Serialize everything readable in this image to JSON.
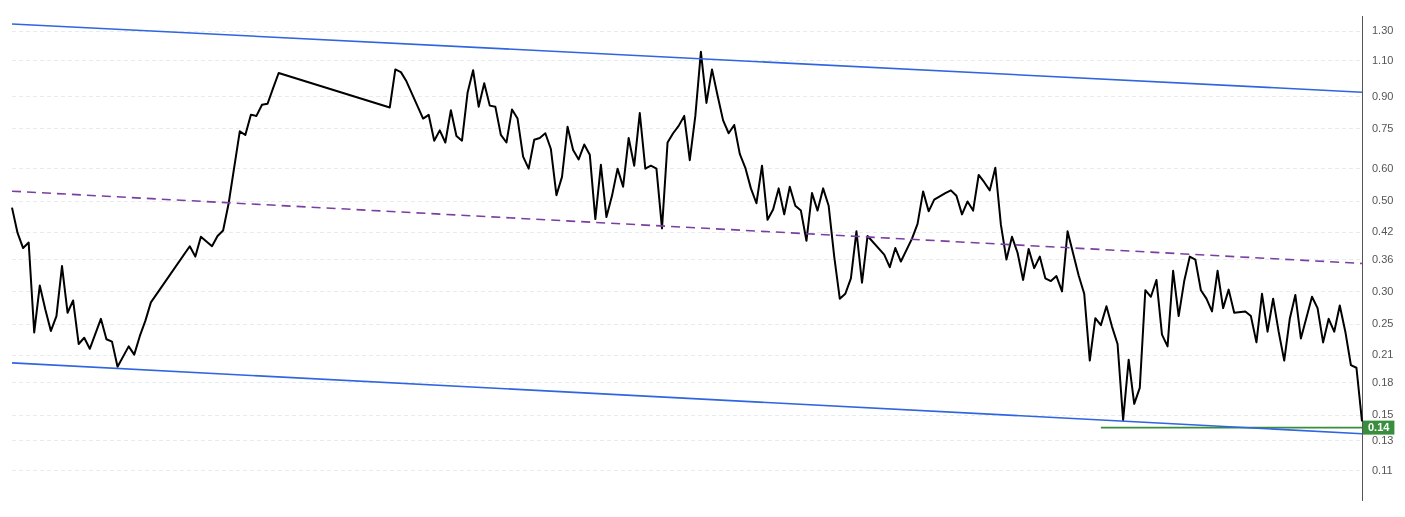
{
  "chart_data": {
    "type": "line",
    "log": "y",
    "grid": "y",
    "tick_labels": "y",
    "categories": [
      null,
      null,
      null,
      null,
      null,
      null,
      null,
      null,
      null,
      null,
      null,
      null,
      null,
      null,
      null,
      null,
      null,
      null,
      null,
      null,
      null,
      null,
      null,
      null,
      null,
      null,
      null,
      null,
      null,
      null,
      null,
      null,
      null,
      null,
      null,
      null,
      null,
      null,
      null,
      null,
      null,
      null,
      null,
      null,
      null,
      null,
      null,
      null,
      null,
      null,
      null,
      null,
      null,
      null,
      null,
      null,
      null,
      null,
      null,
      null,
      null,
      null,
      null,
      null,
      null,
      null,
      null,
      null,
      null,
      null,
      null,
      null,
      null,
      null,
      null,
      null,
      null,
      null,
      null,
      null,
      null,
      null,
      null,
      null,
      null,
      null,
      null,
      null,
      null,
      null,
      null,
      null,
      null,
      null,
      null,
      null,
      null,
      null,
      null,
      null,
      null,
      null,
      null,
      null,
      null,
      null,
      null,
      null,
      null,
      null,
      null,
      null,
      null,
      null,
      null,
      null,
      null,
      null,
      null,
      null,
      null,
      null,
      null,
      null,
      null,
      null,
      null,
      null,
      null,
      null,
      null,
      null,
      null,
      null,
      null,
      null,
      null,
      null,
      null,
      null,
      null,
      null,
      null,
      null,
      null,
      null,
      null,
      null,
      null,
      null,
      null,
      null,
      null,
      null,
      null,
      null,
      null,
      null,
      null,
      null,
      null,
      null,
      null,
      null,
      null,
      null,
      null,
      null,
      null,
      null,
      null,
      null,
      null,
      null,
      null,
      null,
      null,
      null,
      null,
      null,
      null,
      null,
      null,
      null,
      null,
      null,
      null,
      null,
      null,
      null,
      null,
      null,
      null,
      null,
      null,
      null,
      null,
      null,
      null,
      null,
      null,
      null,
      null,
      null,
      null,
      null,
      null,
      null,
      null,
      null,
      null,
      null,
      null,
      null,
      null,
      null,
      null,
      null,
      null,
      null,
      null,
      null,
      null,
      null,
      null,
      null,
      null,
      null,
      null,
      null,
      null,
      null,
      null,
      null,
      null,
      null,
      null,
      null,
      null,
      null,
      null,
      null,
      null,
      null
    ],
    "ylim": [
      0.093,
      1.41
    ],
    "yticks": [
      {
        "value": 1.3,
        "label": "1.30"
      },
      {
        "value": 1.1,
        "label": "1.10"
      },
      {
        "value": 0.9,
        "label": "0.90"
      },
      0.75,
      {
        "value": 0.6,
        "label": "0.60"
      },
      {
        "value": 0.5,
        "label": "0.50"
      },
      0.42,
      0.36,
      {
        "value": 0.3,
        "label": "0.30"
      },
      0.25,
      0.21,
      0.18,
      0.15,
      0.13,
      0.11
    ],
    "series": [
      {
        "color": "#2f65e0",
        "values": [
          1.353,
          null,
          null,
          null,
          null,
          null,
          null,
          null,
          null,
          null,
          null,
          null,
          null,
          null,
          null,
          null,
          null,
          null,
          null,
          null,
          null,
          null,
          null,
          null,
          null,
          null,
          null,
          null,
          null,
          null,
          null,
          null,
          null,
          null,
          null,
          null,
          null,
          null,
          null,
          null,
          null,
          null,
          null,
          null,
          null,
          null,
          null,
          null,
          null,
          null,
          null,
          null,
          null,
          null,
          null,
          null,
          null,
          null,
          null,
          null,
          null,
          null,
          null,
          null,
          null,
          null,
          null,
          null,
          null,
          null,
          null,
          null,
          null,
          null,
          null,
          null,
          null,
          null,
          null,
          null,
          null,
          null,
          null,
          null,
          null,
          null,
          null,
          null,
          null,
          null,
          null,
          null,
          null,
          null,
          null,
          null,
          null,
          null,
          null,
          null,
          null,
          null,
          null,
          null,
          null,
          null,
          null,
          null,
          null,
          null,
          null,
          null,
          null,
          null,
          null,
          null,
          null,
          null,
          null,
          null,
          null,
          null,
          null,
          null,
          null,
          null,
          null,
          null,
          null,
          null,
          null,
          null,
          null,
          null,
          null,
          null,
          null,
          null,
          null,
          null,
          null,
          null,
          null,
          null,
          null,
          null,
          null,
          null,
          null,
          null,
          null,
          null,
          null,
          null,
          null,
          null,
          null,
          null,
          null,
          null,
          null,
          null,
          null,
          null,
          null,
          null,
          null,
          null,
          null,
          null,
          null,
          null,
          null,
          null,
          null,
          null,
          null,
          null,
          null,
          null,
          null,
          null,
          null,
          null,
          null,
          null,
          null,
          null,
          null,
          null,
          null,
          null,
          null,
          null,
          null,
          null,
          null,
          null,
          null,
          null,
          null,
          null,
          null,
          null,
          null,
          null,
          null,
          null,
          null,
          null,
          null,
          null,
          null,
          null,
          null,
          null,
          null,
          null,
          null,
          null,
          null,
          null,
          null,
          null,
          null,
          null,
          null,
          null,
          null,
          null,
          null,
          null,
          null,
          null,
          null,
          null,
          null,
          null,
          null,
          null,
          null,
          null,
          null,
          0.922
        ]
      },
      {
        "color": "#2f65e0",
        "values": [
          0.2014,
          null,
          null,
          null,
          null,
          null,
          null,
          null,
          null,
          null,
          null,
          null,
          null,
          null,
          null,
          null,
          null,
          null,
          null,
          null,
          null,
          null,
          null,
          null,
          null,
          null,
          null,
          null,
          null,
          null,
          null,
          null,
          null,
          null,
          null,
          null,
          null,
          null,
          null,
          null,
          null,
          null,
          null,
          null,
          null,
          null,
          null,
          null,
          null,
          null,
          null,
          null,
          null,
          null,
          null,
          null,
          null,
          null,
          null,
          null,
          null,
          null,
          null,
          null,
          null,
          null,
          null,
          null,
          null,
          null,
          null,
          null,
          null,
          null,
          null,
          null,
          null,
          null,
          null,
          null,
          null,
          null,
          null,
          null,
          null,
          null,
          null,
          null,
          null,
          null,
          null,
          null,
          null,
          null,
          null,
          null,
          null,
          null,
          null,
          null,
          null,
          null,
          null,
          null,
          null,
          null,
          null,
          null,
          null,
          null,
          null,
          null,
          null,
          null,
          null,
          null,
          null,
          null,
          null,
          null,
          null,
          null,
          null,
          null,
          null,
          null,
          null,
          null,
          null,
          null,
          null,
          null,
          null,
          null,
          null,
          null,
          null,
          null,
          null,
          null,
          null,
          null,
          null,
          null,
          null,
          null,
          null,
          null,
          null,
          null,
          null,
          null,
          null,
          null,
          null,
          null,
          null,
          null,
          null,
          null,
          null,
          null,
          null,
          null,
          null,
          null,
          null,
          null,
          null,
          null,
          null,
          null,
          null,
          null,
          null,
          null,
          null,
          null,
          null,
          null,
          null,
          null,
          null,
          null,
          null,
          null,
          null,
          null,
          null,
          null,
          null,
          null,
          null,
          null,
          null,
          null,
          null,
          null,
          null,
          null,
          null,
          null,
          null,
          null,
          null,
          null,
          null,
          null,
          null,
          null,
          null,
          null,
          null,
          null,
          null,
          null,
          null,
          null,
          null,
          null,
          null,
          null,
          null,
          null,
          null,
          null,
          null,
          null,
          null,
          null,
          null,
          null,
          null,
          null,
          null,
          null,
          null,
          null,
          null,
          null,
          null,
          null,
          null,
          0.1353
        ]
      },
      {
        "color": "#7b3fa0",
        "line_style": "dashed",
        "values": [
          0.5286,
          null,
          null,
          null,
          null,
          null,
          null,
          null,
          null,
          null,
          null,
          null,
          null,
          null,
          null,
          null,
          null,
          null,
          null,
          null,
          null,
          null,
          null,
          null,
          null,
          null,
          null,
          null,
          null,
          null,
          null,
          null,
          null,
          null,
          null,
          null,
          null,
          null,
          null,
          null,
          null,
          null,
          null,
          null,
          null,
          null,
          null,
          null,
          null,
          null,
          null,
          null,
          null,
          null,
          null,
          null,
          null,
          null,
          null,
          null,
          null,
          null,
          null,
          null,
          null,
          null,
          null,
          null,
          null,
          null,
          null,
          null,
          null,
          null,
          null,
          null,
          null,
          null,
          null,
          null,
          null,
          null,
          null,
          null,
          null,
          null,
          null,
          null,
          null,
          null,
          null,
          null,
          null,
          null,
          null,
          null,
          null,
          null,
          null,
          null,
          null,
          null,
          null,
          null,
          null,
          null,
          null,
          null,
          null,
          null,
          null,
          null,
          null,
          null,
          null,
          null,
          null,
          null,
          null,
          null,
          null,
          null,
          null,
          null,
          null,
          null,
          null,
          null,
          null,
          null,
          null,
          null,
          null,
          null,
          null,
          null,
          null,
          null,
          null,
          null,
          null,
          null,
          null,
          null,
          null,
          null,
          null,
          null,
          null,
          null,
          null,
          null,
          null,
          null,
          null,
          null,
          null,
          null,
          null,
          null,
          null,
          null,
          null,
          null,
          null,
          null,
          null,
          null,
          null,
          null,
          null,
          null,
          null,
          null,
          null,
          null,
          null,
          null,
          null,
          null,
          null,
          null,
          null,
          null,
          null,
          null,
          null,
          null,
          null,
          null,
          null,
          null,
          null,
          null,
          null,
          null,
          null,
          null,
          null,
          null,
          null,
          null,
          null,
          null,
          null,
          null,
          null,
          null,
          null,
          null,
          null,
          null,
          null,
          null,
          null,
          null,
          null,
          null,
          null,
          null,
          null,
          null,
          null,
          null,
          null,
          null,
          null,
          null,
          null,
          null,
          null,
          null,
          null,
          null,
          null,
          null,
          null,
          null,
          null,
          null,
          null,
          null,
          null,
          0.3522
        ]
      },
      {
        "color": "#388e3c",
        "value_labels": [
          null,
          null,
          null,
          null,
          null,
          null,
          null,
          null,
          null,
          null,
          null,
          null,
          null,
          null,
          null,
          null,
          null,
          null,
          null,
          null,
          null,
          null,
          null,
          null,
          null,
          null,
          null,
          null,
          null,
          null,
          null,
          null,
          null,
          null,
          null,
          null,
          null,
          null,
          null,
          null,
          null,
          null,
          null,
          null,
          null,
          null,
          null,
          null,
          null,
          null,
          null,
          null,
          null,
          null,
          null,
          null,
          null,
          null,
          null,
          null,
          null,
          null,
          null,
          null,
          null,
          null,
          null,
          null,
          null,
          null,
          null,
          null,
          null,
          null,
          null,
          null,
          null,
          null,
          null,
          null,
          null,
          null,
          null,
          null,
          null,
          null,
          null,
          null,
          null,
          null,
          null,
          null,
          null,
          null,
          null,
          null,
          null,
          null,
          null,
          null,
          null,
          null,
          null,
          null,
          null,
          null,
          null,
          null,
          null,
          null,
          null,
          null,
          null,
          null,
          null,
          null,
          null,
          null,
          null,
          null,
          null,
          null,
          null,
          null,
          null,
          null,
          null,
          null,
          null,
          null,
          null,
          null,
          null,
          null,
          null,
          null,
          null,
          null,
          null,
          null,
          null,
          null,
          null,
          null,
          null,
          null,
          null,
          null,
          null,
          null,
          null,
          null,
          null,
          null,
          null,
          null,
          null,
          null,
          null,
          null,
          null,
          null,
          null,
          null,
          null,
          null,
          null,
          null,
          null,
          null,
          null,
          null,
          null,
          null,
          null,
          null,
          null,
          null,
          null,
          null,
          null,
          null,
          null,
          null,
          null,
          null,
          null,
          null,
          null,
          null,
          null,
          null,
          null,
          null,
          null,
          null,
          null,
          null,
          null,
          null,
          null,
          null,
          null,
          null,
          null,
          null,
          null,
          null,
          null,
          null,
          null,
          null,
          null,
          null,
          null,
          null,
          null,
          null,
          null,
          null,
          null,
          null,
          null,
          null,
          null,
          null,
          null,
          null,
          null,
          null,
          null,
          null,
          null,
          null,
          null,
          null,
          null,
          null,
          null,
          null,
          null,
          null,
          null,
          "0.14"
        ],
        "values": [
          null,
          null,
          null,
          null,
          null,
          null,
          null,
          null,
          null,
          null,
          null,
          null,
          null,
          null,
          null,
          null,
          null,
          null,
          null,
          null,
          null,
          null,
          null,
          null,
          null,
          null,
          null,
          null,
          null,
          null,
          null,
          null,
          null,
          null,
          null,
          null,
          null,
          null,
          null,
          null,
          null,
          null,
          null,
          null,
          null,
          null,
          null,
          null,
          null,
          null,
          null,
          null,
          null,
          null,
          null,
          null,
          null,
          null,
          null,
          null,
          null,
          null,
          null,
          null,
          null,
          null,
          null,
          null,
          null,
          null,
          null,
          null,
          null,
          null,
          null,
          null,
          null,
          null,
          null,
          null,
          null,
          null,
          null,
          null,
          null,
          null,
          null,
          null,
          null,
          null,
          null,
          null,
          null,
          null,
          null,
          null,
          null,
          null,
          null,
          null,
          null,
          null,
          null,
          null,
          null,
          null,
          null,
          null,
          null,
          null,
          null,
          null,
          null,
          null,
          null,
          null,
          null,
          null,
          null,
          null,
          null,
          null,
          null,
          null,
          null,
          null,
          null,
          null,
          null,
          null,
          null,
          null,
          null,
          null,
          null,
          null,
          null,
          null,
          null,
          null,
          null,
          null,
          null,
          null,
          null,
          null,
          null,
          null,
          null,
          null,
          null,
          null,
          null,
          null,
          null,
          null,
          null,
          null,
          null,
          null,
          null,
          null,
          null,
          null,
          null,
          null,
          null,
          null,
          null,
          null,
          null,
          null,
          null,
          null,
          null,
          null,
          null,
          null,
          null,
          null,
          null,
          null,
          null,
          null,
          null,
          null,
          null,
          null,
          null,
          null,
          null,
          null,
          null,
          null,
          null,
          null,
          0.14,
          null,
          null,
          null,
          null,
          null,
          null,
          null,
          null,
          null,
          null,
          null,
          null,
          null,
          null,
          null,
          null,
          null,
          null,
          null,
          null,
          null,
          null,
          null,
          null,
          null,
          null,
          null,
          null,
          null,
          null,
          null,
          null,
          null,
          null,
          null,
          null,
          null,
          null,
          null,
          null,
          null,
          null,
          null,
          null,
          null,
          null,
          0.14
        ]
      },
      {
        "color": "#000000",
        "values": [
          0.482,
          0.418,
          0.384,
          0.396,
          0.239,
          0.311,
          0.272,
          0.241,
          0.262,
          0.347,
          0.267,
          0.286,
          0.224,
          0.232,
          0.218,
          null,
          0.258,
          0.23,
          0.227,
          0.197,
          null,
          0.221,
          0.211,
          0.234,
          0.255,
          0.283,
          null,
          null,
          null,
          null,
          null,
          null,
          0.388,
          0.366,
          0.409,
          null,
          0.388,
          0.411,
          0.424,
          0.494,
          null,
          0.74,
          0.725,
          0.812,
          0.807,
          0.859,
          0.864,
          0.943,
          1.027,
          null,
          null,
          null,
          null,
          null,
          null,
          null,
          null,
          null,
          null,
          null,
          null,
          null,
          null,
          null,
          null,
          null,
          null,
          null,
          0.846,
          1.048,
          1.032,
          0.98,
          null,
          null,
          0.795,
          0.812,
          0.702,
          0.744,
          0.695,
          0.833,
          0.721,
          0.702,
          0.919,
          1.043,
          0.85,
          0.97,
          0.855,
          0.85,
          0.725,
          0.695,
          0.837,
          0.795,
          0.642,
          0.6,
          0.706,
          0.713,
          0.732,
          0.67,
          0.517,
          0.573,
          0.759,
          0.666,
          0.632,
          0.687,
          0.649,
          0.452,
          0.613,
          0.457,
          0.515,
          0.6,
          0.542,
          0.713,
          0.61,
          0.82,
          0.6,
          0.61,
          0.6,
          0.429,
          0.695,
          0.732,
          0.763,
          0.807,
          0.629,
          0.807,
          1.157,
          0.868,
          1.048,
          0.905,
          0.787,
          0.732,
          0.767,
          0.652,
          0.603,
          0.537,
          0.494,
          0.61,
          0.45,
          0.477,
          0.537,
          0.464,
          0.542,
          0.487,
          0.474,
          0.4,
          0.523,
          0.474,
          0.537,
          0.487,
          0.366,
          0.289,
          0.297,
          0.324,
          0.422,
          0.316,
          0.411,
          null,
          null,
          0.37,
          0.345,
          0.384,
          0.356,
          null,
          0.405,
          0.44,
          0.528,
          0.472,
          0.504,
          null,
          0.523,
          0.531,
          0.515,
          0.464,
          0.499,
          0.474,
          0.579,
          0.556,
          0.531,
          0.603,
          0.438,
          0.36,
          0.409,
          0.374,
          0.321,
          0.382,
          0.343,
          0.366,
          0.324,
          0.319,
          0.328,
          0.301,
          0.422,
          null,
          0.329,
          0.297,
          0.204,
          0.259,
          0.249,
          0.277,
          0.247,
          0.224,
          0.146,
          0.205,
          0.16,
          0.175,
          0.303,
          0.292,
          0.321,
          0.236,
          0.221,
          0.338,
          0.262,
          0.319,
          0.366,
          0.36,
          0.303,
          0.289,
          0.269,
          0.338,
          0.274,
          0.304,
          0.267,
          null,
          0.269,
          0.262,
          0.226,
          0.297,
          0.24,
          0.289,
          0.24,
          0.204,
          0.258,
          0.295,
          0.231,
          null,
          0.292,
          0.274,
          0.226,
          0.258,
          0.24,
          0.278,
          0.24,
          0.199,
          0.196,
          0.145
        ]
      }
    ]
  }
}
